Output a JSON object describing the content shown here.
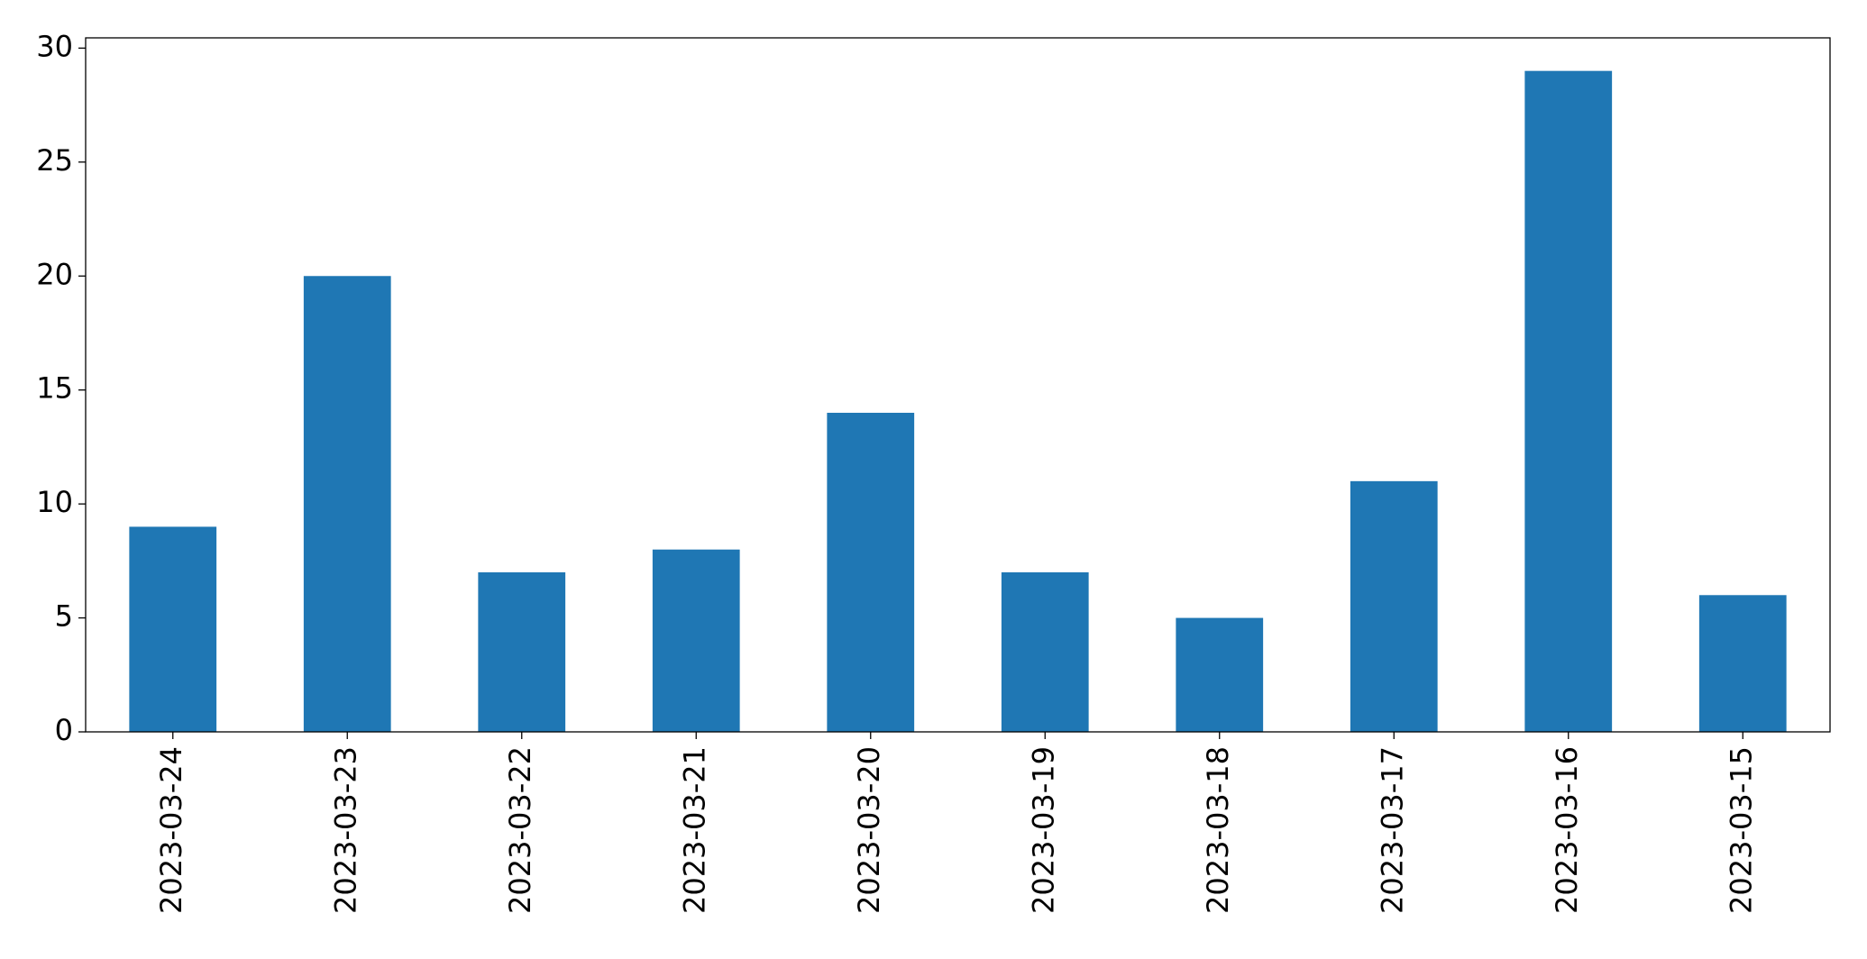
{
  "chart_data": {
    "type": "bar",
    "categories": [
      "2023-03-24",
      "2023-03-23",
      "2023-03-22",
      "2023-03-21",
      "2023-03-20",
      "2023-03-19",
      "2023-03-18",
      "2023-03-17",
      "2023-03-16",
      "2023-03-15"
    ],
    "values": [
      9,
      20,
      7,
      8,
      14,
      7,
      5,
      11,
      29,
      6
    ],
    "color": "#1f77b4",
    "ylim": [
      0,
      30.45
    ],
    "yticks": [
      0,
      5,
      10,
      15,
      20,
      25,
      30
    ],
    "grid": false
  }
}
